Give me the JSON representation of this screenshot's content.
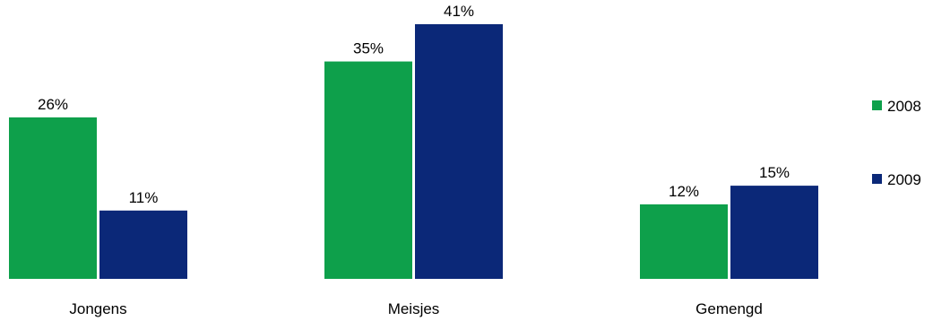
{
  "chart_data": {
    "type": "bar",
    "categories": [
      "Jongens",
      "Meisjes",
      "Gemengd"
    ],
    "series": [
      {
        "name": "2008",
        "values": [
          26,
          35,
          12
        ],
        "labels": [
          "26%",
          "35%",
          "12%"
        ],
        "color": "#0ea04b"
      },
      {
        "name": "2009",
        "values": [
          11,
          41,
          15
        ],
        "labels": [
          "11%",
          "41%",
          "15%"
        ],
        "color": "#0b2878"
      }
    ],
    "value_suffix": "%",
    "title": "",
    "xlabel": "",
    "ylabel": "",
    "ylim": [
      0,
      41
    ],
    "grid": false,
    "legend": "right"
  }
}
